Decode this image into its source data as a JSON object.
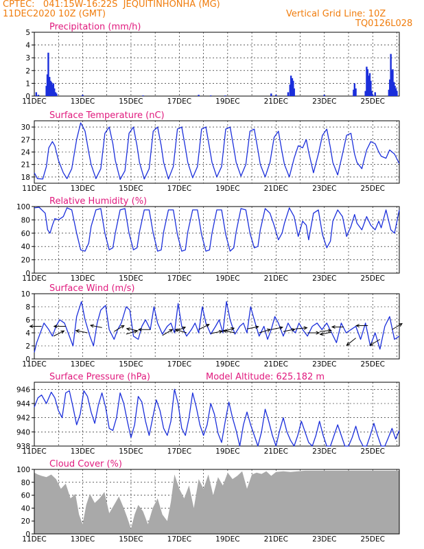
{
  "header": {
    "line1_left": "CPTEC:   041:15W-16:22S  JEQUITINHONHA (MG)",
    "line2_left": "11DEC2020 10Z (GMT)",
    "line2_right": "Vertical Grid Line: 10Z",
    "line3_right": "TQ0126L028"
  },
  "colors": {
    "header": "#f07c0c",
    "title": "#e0197d",
    "line": "#1a2edb",
    "cloud": "#a9a9a9",
    "arrow": "#000000"
  },
  "chart_data": [
    {
      "type": "bar",
      "title": "Precipitation (mm/h)",
      "x_tick_labels": [
        "11DEC",
        "13DEC",
        "15DEC",
        "17DEC",
        "19DEC",
        "21DEC",
        "23DEC",
        "25DEC"
      ],
      "x_tick_days": [
        11,
        13,
        15,
        17,
        19,
        21,
        23,
        25
      ],
      "xlim": [
        11,
        26.1
      ],
      "ylim": [
        0,
        5
      ],
      "y_ticks": [
        0,
        1,
        2,
        3,
        4,
        5
      ],
      "grid": true,
      "x": [
        11.08,
        11.17,
        11.5,
        11.54,
        11.58,
        11.63,
        11.67,
        11.71,
        11.75,
        11.79,
        11.83,
        11.88,
        11.92,
        13.0,
        15.5,
        17.8,
        18.3,
        18.9,
        20.8,
        21.0,
        21.5,
        21.58,
        21.62,
        21.67,
        21.71,
        21.75,
        23.0,
        24.21,
        24.25,
        24.3,
        24.7,
        24.75,
        24.79,
        24.83,
        24.88,
        24.92,
        24.96,
        25.0,
        25.1,
        25.67,
        25.71,
        25.75,
        25.79,
        25.83,
        25.88,
        25.92,
        25.96,
        26.0
      ],
      "values": [
        0.3,
        0.1,
        0.8,
        1.7,
        3.4,
        1.5,
        1.2,
        1.1,
        0.9,
        1.0,
        0.6,
        0.3,
        0.2,
        0.1,
        0.05,
        0.1,
        0.05,
        0.05,
        0.2,
        0.1,
        0.3,
        0.9,
        1.6,
        1.4,
        1.2,
        0.6,
        0.1,
        0.5,
        1.0,
        0.6,
        0.4,
        2.3,
        2.1,
        1.6,
        1.8,
        1.2,
        0.4,
        0.1,
        0.3,
        0.5,
        1.3,
        3.3,
        2.0,
        2.1,
        1.1,
        0.8,
        0.6,
        0.4
      ]
    },
    {
      "type": "line",
      "title": "Surface Temperature (nC)",
      "x_tick_labels": [
        "11DEC",
        "13DEC",
        "15DEC",
        "17DEC",
        "19DEC",
        "21DEC",
        "23DEC",
        "25DEC"
      ],
      "x_tick_days": [
        11,
        13,
        15,
        17,
        19,
        21,
        23,
        25
      ],
      "xlim": [
        11,
        26.1
      ],
      "ylim": [
        16.5,
        31.5
      ],
      "y_ticks": [
        18,
        21,
        24,
        27,
        30
      ],
      "grid": true,
      "x": [
        11.0,
        11.13,
        11.35,
        11.5,
        11.6,
        11.75,
        11.85,
        12.0,
        12.2,
        12.35,
        12.55,
        12.75,
        12.92,
        13.1,
        13.25,
        13.35,
        13.55,
        13.75,
        13.92,
        14.1,
        14.25,
        14.35,
        14.55,
        14.75,
        14.92,
        15.1,
        15.25,
        15.35,
        15.55,
        15.75,
        15.92,
        16.1,
        16.25,
        16.35,
        16.55,
        16.75,
        16.92,
        17.1,
        17.25,
        17.35,
        17.55,
        17.75,
        17.92,
        18.1,
        18.25,
        18.35,
        18.55,
        18.75,
        18.92,
        19.1,
        19.25,
        19.35,
        19.55,
        19.75,
        19.92,
        20.1,
        20.25,
        20.35,
        20.55,
        20.75,
        20.92,
        21.1,
        21.25,
        21.35,
        21.55,
        21.75,
        21.92,
        22.1,
        22.25,
        22.35,
        22.55,
        22.75,
        22.92,
        23.1,
        23.25,
        23.35,
        23.55,
        23.75,
        23.92,
        24.1,
        24.25,
        24.35,
        24.55,
        24.75,
        24.92,
        25.1,
        25.25,
        25.35,
        25.55,
        25.7,
        25.9,
        26.1
      ],
      "values": [
        19.0,
        17.6,
        17.5,
        20.5,
        25.0,
        26.5,
        25.5,
        22.0,
        19.0,
        17.6,
        20.0,
        27.0,
        31.0,
        29.0,
        24.0,
        21.0,
        17.6,
        20.0,
        28.5,
        30.0,
        26.0,
        22.0,
        17.4,
        19.5,
        28.5,
        30.0,
        25.5,
        21.5,
        17.5,
        20.0,
        29.0,
        30.0,
        25.5,
        21.5,
        17.5,
        20.5,
        29.5,
        30.0,
        25.0,
        21.5,
        17.8,
        20.5,
        29.5,
        30.0,
        25.0,
        21.5,
        18.0,
        20.5,
        29.5,
        30.0,
        25.0,
        21.5,
        18.2,
        21.0,
        29.0,
        29.5,
        24.5,
        21.0,
        18.0,
        21.5,
        27.5,
        29.0,
        24.0,
        21.0,
        18.0,
        22.5,
        25.5,
        25.0,
        27.0,
        24.0,
        19.0,
        23.5,
        28.0,
        29.5,
        25.0,
        21.5,
        18.5,
        23.5,
        28.0,
        28.5,
        23.5,
        21.5,
        20.0,
        24.5,
        26.5,
        26.0,
        24.0,
        23.0,
        22.5,
        24.5,
        23.5,
        21.2
      ]
    },
    {
      "type": "line",
      "title": "Relative Humidity (%)",
      "x_tick_labels": [
        "11DEC",
        "13DEC",
        "15DEC",
        "17DEC",
        "19DEC",
        "21DEC",
        "23DEC",
        "25DEC"
      ],
      "x_tick_days": [
        11,
        13,
        15,
        17,
        19,
        21,
        23,
        25
      ],
      "xlim": [
        11,
        26.1
      ],
      "ylim": [
        0,
        100
      ],
      "y_ticks": [
        0,
        20,
        40,
        60,
        80,
        100
      ],
      "grid": true,
      "x": [
        11.0,
        11.2,
        11.45,
        11.55,
        11.65,
        11.75,
        11.85,
        12.0,
        12.2,
        12.35,
        12.55,
        12.75,
        12.92,
        13.1,
        13.25,
        13.35,
        13.55,
        13.75,
        13.92,
        14.1,
        14.25,
        14.35,
        14.55,
        14.75,
        14.92,
        15.1,
        15.25,
        15.35,
        15.55,
        15.75,
        15.92,
        16.1,
        16.25,
        16.35,
        16.55,
        16.75,
        16.92,
        17.1,
        17.25,
        17.35,
        17.55,
        17.75,
        17.92,
        18.1,
        18.25,
        18.35,
        18.55,
        18.75,
        18.92,
        19.1,
        19.25,
        19.35,
        19.55,
        19.75,
        19.92,
        20.1,
        20.25,
        20.35,
        20.55,
        20.75,
        20.92,
        21.1,
        21.25,
        21.35,
        21.55,
        21.75,
        21.92,
        22.1,
        22.25,
        22.35,
        22.55,
        22.75,
        22.92,
        23.1,
        23.25,
        23.35,
        23.55,
        23.75,
        23.92,
        24.1,
        24.25,
        24.35,
        24.55,
        24.75,
        24.92,
        25.1,
        25.25,
        25.35,
        25.55,
        25.75,
        25.9,
        26.1
      ],
      "values": [
        98,
        99,
        90,
        65,
        60,
        72,
        82,
        80,
        85,
        98,
        95,
        60,
        35,
        33,
        45,
        70,
        95,
        97,
        60,
        35,
        38,
        60,
        95,
        97,
        60,
        35,
        38,
        62,
        95,
        95,
        60,
        33,
        35,
        62,
        95,
        95,
        58,
        33,
        35,
        62,
        95,
        95,
        58,
        33,
        35,
        60,
        95,
        95,
        58,
        33,
        38,
        62,
        97,
        95,
        60,
        38,
        40,
        65,
        97,
        90,
        72,
        50,
        60,
        75,
        98,
        85,
        55,
        78,
        72,
        50,
        90,
        95,
        58,
        38,
        48,
        78,
        95,
        85,
        55,
        70,
        88,
        75,
        65,
        85,
        72,
        65,
        78,
        68,
        95,
        65,
        60,
        95
      ]
    },
    {
      "type": "line",
      "title": "Surface Wind (m/s)",
      "x_tick_labels": [
        "11DEC",
        "13DEC",
        "15DEC",
        "17DEC",
        "19DEC",
        "21DEC",
        "23DEC",
        "25DEC"
      ],
      "x_tick_days": [
        11,
        13,
        15,
        17,
        19,
        21,
        23,
        25
      ],
      "xlim": [
        11,
        26.1
      ],
      "ylim": [
        0,
        10
      ],
      "y_ticks": [
        0,
        2,
        4,
        6,
        8,
        10
      ],
      "grid": true,
      "x": [
        11.0,
        11.1,
        11.25,
        11.4,
        11.6,
        11.75,
        11.9,
        12.05,
        12.25,
        12.4,
        12.6,
        12.75,
        12.95,
        13.1,
        13.3,
        13.45,
        13.6,
        13.75,
        13.95,
        14.1,
        14.3,
        14.45,
        14.6,
        14.8,
        14.95,
        15.1,
        15.3,
        15.45,
        15.6,
        15.8,
        15.95,
        16.1,
        16.3,
        16.5,
        16.65,
        16.8,
        16.95,
        17.1,
        17.3,
        17.5,
        17.65,
        17.8,
        17.95,
        18.1,
        18.3,
        18.5,
        18.65,
        18.8,
        18.95,
        19.1,
        19.3,
        19.5,
        19.65,
        19.8,
        19.95,
        20.1,
        20.3,
        20.5,
        20.65,
        20.8,
        20.95,
        21.1,
        21.3,
        21.5,
        21.65,
        21.8,
        21.95,
        22.1,
        22.3,
        22.5,
        22.7,
        22.9,
        23.1,
        23.3,
        23.5,
        23.7,
        23.9,
        24.1,
        24.3,
        24.5,
        24.7,
        24.9,
        25.1,
        25.3,
        25.5,
        25.7,
        25.9,
        26.1
      ],
      "values": [
        1.0,
        2.5,
        4.0,
        5.5,
        4.5,
        3.5,
        5.0,
        6.0,
        5.5,
        4.0,
        2.0,
        6.5,
        8.8,
        6.0,
        3.5,
        2.0,
        5.5,
        7.5,
        8.2,
        4.5,
        3.0,
        4.5,
        5.5,
        8.0,
        7.5,
        3.5,
        3.0,
        5.0,
        6.0,
        4.5,
        8.0,
        5.5,
        3.8,
        5.0,
        5.5,
        4.0,
        8.5,
        5.0,
        3.5,
        4.5,
        5.5,
        4.0,
        8.0,
        5.5,
        3.8,
        5.0,
        6.0,
        4.0,
        8.8,
        6.0,
        3.8,
        5.0,
        5.5,
        4.0,
        8.0,
        6.0,
        3.5,
        5.0,
        3.0,
        4.5,
        6.5,
        5.5,
        3.5,
        5.5,
        4.5,
        4.0,
        5.5,
        4.5,
        3.5,
        5.0,
        5.5,
        4.5,
        5.5,
        4.0,
        2.5,
        5.5,
        4.0,
        4.5,
        5.0,
        3.0,
        5.5,
        2.0,
        4.0,
        1.5,
        5.0,
        6.5,
        3.0,
        3.5
      ]
    },
    {
      "type": "line",
      "title": "Surface Pressure (hPa)",
      "annotation": "Model Altitude: 625.182 m",
      "x_tick_labels": [
        "11DEC",
        "13DEC",
        "15DEC",
        "17DEC",
        "19DEC",
        "21DEC",
        "23DEC",
        "25DEC"
      ],
      "x_tick_days": [
        11,
        13,
        15,
        17,
        19,
        21,
        23,
        25
      ],
      "xlim": [
        11,
        26.1
      ],
      "ylim": [
        938,
        947
      ],
      "y_ticks": [
        938,
        940,
        942,
        944,
        946
      ],
      "grid": true,
      "x": [
        11.0,
        11.15,
        11.3,
        11.5,
        11.7,
        11.85,
        12.0,
        12.15,
        12.3,
        12.45,
        12.6,
        12.75,
        12.9,
        13.05,
        13.2,
        13.35,
        13.5,
        13.65,
        13.8,
        13.95,
        14.1,
        14.25,
        14.4,
        14.55,
        14.7,
        14.85,
        15.0,
        15.15,
        15.3,
        15.45,
        15.6,
        15.75,
        15.9,
        16.05,
        16.2,
        16.35,
        16.5,
        16.65,
        16.8,
        16.95,
        17.1,
        17.25,
        17.4,
        17.55,
        17.7,
        17.85,
        18.0,
        18.15,
        18.3,
        18.45,
        18.6,
        18.75,
        18.9,
        19.05,
        19.2,
        19.35,
        19.5,
        19.65,
        19.8,
        19.95,
        20.1,
        20.25,
        20.4,
        20.55,
        20.7,
        20.85,
        21.0,
        21.15,
        21.3,
        21.45,
        21.6,
        21.75,
        21.9,
        22.05,
        22.2,
        22.35,
        22.5,
        22.65,
        22.8,
        22.95,
        23.1,
        23.25,
        23.4,
        23.55,
        23.7,
        23.85,
        24.0,
        24.15,
        24.3,
        24.45,
        24.6,
        24.75,
        24.9,
        25.05,
        25.2,
        25.35,
        25.5,
        25.65,
        25.8,
        25.95,
        26.1
      ],
      "values": [
        943.5,
        944.8,
        945.2,
        944.0,
        945.6,
        944.8,
        943.0,
        942.0,
        945.5,
        945.8,
        943.5,
        941.0,
        942.5,
        945.8,
        945.0,
        942.8,
        941.2,
        943.8,
        945.5,
        943.5,
        940.5,
        940.2,
        942.0,
        945.5,
        944.0,
        941.5,
        939.2,
        941.0,
        945.0,
        944.2,
        941.5,
        939.5,
        942.0,
        944.5,
        943.0,
        940.5,
        939.5,
        941.5,
        946.0,
        944.0,
        940.5,
        939.5,
        942.0,
        945.5,
        943.5,
        941.0,
        939.5,
        941.0,
        944.0,
        942.5,
        939.8,
        938.5,
        941.5,
        944.2,
        942.0,
        940.2,
        938.0,
        941.0,
        942.8,
        941.0,
        939.5,
        938.0,
        940.0,
        943.2,
        941.5,
        939.5,
        938.0,
        940.2,
        942.0,
        940.0,
        938.8,
        938.0,
        939.5,
        941.5,
        940.0,
        938.5,
        938.0,
        939.5,
        941.5,
        939.5,
        938.0,
        938.0,
        939.5,
        941.0,
        939.5,
        938.0,
        938.0,
        939.2,
        940.8,
        939.0,
        938.0,
        938.0,
        939.5,
        941.2,
        939.5,
        938.0,
        938.0,
        939.2,
        940.5,
        939.0,
        940.2
      ]
    },
    {
      "type": "area",
      "title": "Cloud Cover (%)",
      "x_tick_labels": [
        "11DEC",
        "13DEC",
        "15DEC",
        "17DEC",
        "19DEC",
        "21DEC",
        "23DEC",
        "25DEC"
      ],
      "x_tick_days": [
        11,
        13,
        15,
        17,
        19,
        21,
        23,
        25
      ],
      "xlim": [
        11,
        26.1
      ],
      "ylim": [
        0,
        100
      ],
      "y_ticks": [
        0,
        20,
        40,
        60,
        80,
        100
      ],
      "grid": true,
      "x": [
        11.0,
        11.15,
        11.3,
        11.5,
        11.7,
        11.9,
        12.1,
        12.3,
        12.5,
        12.7,
        12.85,
        13.0,
        13.15,
        13.3,
        13.5,
        13.7,
        13.9,
        14.1,
        14.3,
        14.5,
        14.7,
        14.85,
        15.0,
        15.15,
        15.3,
        15.5,
        15.7,
        15.9,
        16.1,
        16.3,
        16.5,
        16.65,
        16.8,
        17.0,
        17.2,
        17.4,
        17.6,
        17.8,
        18.0,
        18.2,
        18.4,
        18.6,
        18.8,
        19.0,
        19.2,
        19.4,
        19.6,
        19.8,
        20.0,
        20.2,
        20.4,
        20.6,
        20.8,
        21.0,
        21.3,
        21.6,
        21.9,
        22.2,
        22.6,
        23.0,
        23.4,
        23.8,
        24.2,
        24.6,
        25.0,
        25.4,
        25.8,
        26.1
      ],
      "values": [
        95,
        92,
        90,
        88,
        92,
        85,
        70,
        78,
        55,
        62,
        30,
        15,
        45,
        62,
        48,
        55,
        65,
        32,
        45,
        58,
        40,
        25,
        8,
        30,
        45,
        35,
        15,
        40,
        55,
        30,
        20,
        50,
        92,
        70,
        55,
        75,
        40,
        85,
        70,
        92,
        60,
        88,
        75,
        95,
        85,
        90,
        97,
        70,
        92,
        95,
        93,
        97,
        90,
        96,
        97,
        96,
        97,
        98,
        98,
        98,
        98,
        98,
        98,
        98,
        98,
        98,
        98,
        98
      ]
    },
    {
      "type": "vector",
      "title": "Surface Wind direction arrows (overlay)",
      "x": [
        11.3,
        11.8,
        12.3,
        13.2,
        13.8,
        14.3,
        14.8,
        15.3,
        15.8,
        16.3,
        16.8,
        17.3,
        17.8,
        18.3,
        18.8,
        19.3,
        19.8,
        20.3,
        20.8,
        21.3,
        21.8,
        22.3,
        22.8,
        23.3,
        23.8,
        24.3,
        24.8,
        25.3,
        25.8
      ],
      "y": [
        5.0,
        3.5,
        5.0,
        4.0,
        4.8,
        4.2,
        3.8,
        4.3,
        4.5,
        3.6,
        4.2,
        4.0,
        4.5,
        3.9,
        4.2,
        4.0,
        4.6,
        4.0,
        4.5,
        4.2,
        4.6,
        4.0,
        4.2,
        4.1,
        4.9,
        3.2,
        5.1,
        3.0,
        4.5
      ],
      "u": [
        -1,
        1,
        -1,
        -1,
        -1,
        1,
        1,
        -1,
        -1,
        1,
        1,
        -1,
        1,
        1,
        1,
        -1,
        1,
        1,
        1,
        1,
        1,
        1,
        1,
        -1,
        -1,
        -1,
        -1,
        -1,
        1
      ],
      "v": [
        0,
        0.5,
        0,
        0.2,
        0.2,
        0.6,
        0.3,
        0.2,
        0,
        0.6,
        0.4,
        0.3,
        0.5,
        0.2,
        0.3,
        0.2,
        0.2,
        0.3,
        0.2,
        0.2,
        0.1,
        0,
        0.1,
        -0.2,
        0,
        -0.8,
        0,
        -0.6,
        0.6
      ]
    }
  ]
}
